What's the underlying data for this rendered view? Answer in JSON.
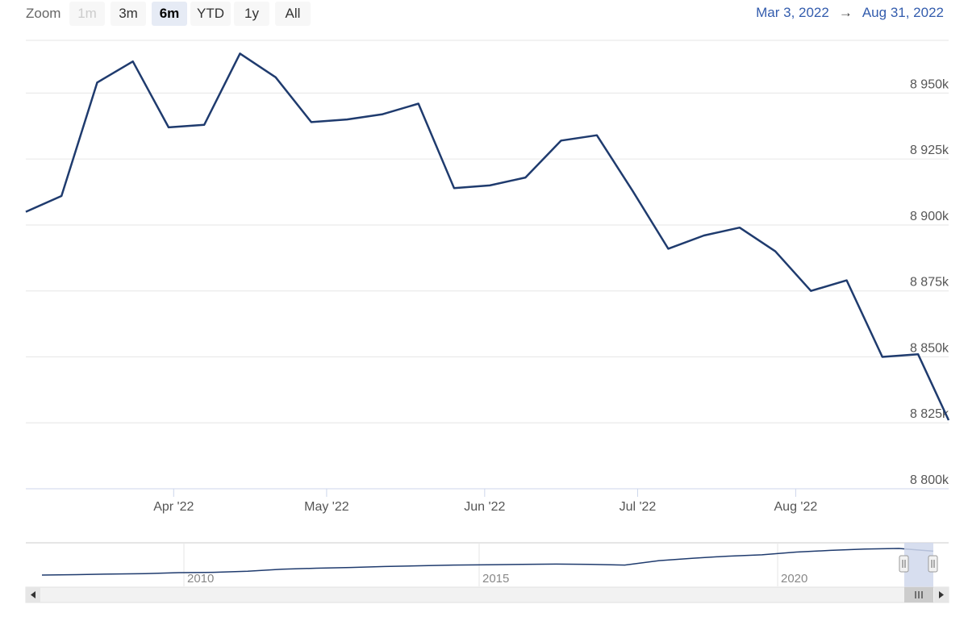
{
  "toolbar": {
    "zoom_label": "Zoom",
    "buttons": [
      "1m",
      "3m",
      "6m",
      "YTD",
      "1y",
      "All"
    ],
    "active": "6m",
    "disabled": [
      "1m"
    ],
    "range_from": "Mar 3, 2022",
    "range_arrow": "→",
    "range_to": "Aug 31, 2022"
  },
  "colors": {
    "line": "#1f3b6e",
    "grid": "#e6e6e6",
    "accent": "#335cad",
    "navigator_mask": "#d0d8ec"
  },
  "chart_data": {
    "type": "line",
    "title": "",
    "ylim": [
      8800,
      8970
    ],
    "x_range": [
      "2022-03-03",
      "2022-08-31"
    ],
    "yticks": [
      {
        "value": 8800,
        "label": "8 800k"
      },
      {
        "value": 8825,
        "label": "8 825k"
      },
      {
        "value": 8850,
        "label": "8 850k"
      },
      {
        "value": 8875,
        "label": "8 875k"
      },
      {
        "value": 8900,
        "label": "8 900k"
      },
      {
        "value": 8925,
        "label": "8 925k"
      },
      {
        "value": 8950,
        "label": "8 950k"
      }
    ],
    "xticks": [
      {
        "date": "2022-04-01",
        "label": "Apr '22"
      },
      {
        "date": "2022-05-01",
        "label": "May '22"
      },
      {
        "date": "2022-06-01",
        "label": "Jun '22"
      },
      {
        "date": "2022-07-01",
        "label": "Jul '22"
      },
      {
        "date": "2022-08-01",
        "label": "Aug '22"
      }
    ],
    "x": [
      "2022-03-03",
      "2022-03-10",
      "2022-03-17",
      "2022-03-24",
      "2022-03-31",
      "2022-04-07",
      "2022-04-14",
      "2022-04-21",
      "2022-04-28",
      "2022-05-05",
      "2022-05-12",
      "2022-05-19",
      "2022-05-26",
      "2022-06-02",
      "2022-06-09",
      "2022-06-16",
      "2022-06-23",
      "2022-06-30",
      "2022-07-07",
      "2022-07-14",
      "2022-07-21",
      "2022-07-28",
      "2022-08-04",
      "2022-08-11",
      "2022-08-18",
      "2022-08-25",
      "2022-08-31"
    ],
    "values": [
      8905,
      8911,
      8954,
      8962,
      8937,
      8938,
      8965,
      8956,
      8939,
      8940,
      8942,
      8946,
      8914,
      8915,
      8918,
      8932,
      8934,
      8913,
      8891,
      8896,
      8899,
      8890,
      8875,
      8879,
      8850,
      8851,
      8826
    ],
    "navigator": {
      "xticks": [
        {
          "label": "2010"
        },
        {
          "label": "2015"
        },
        {
          "label": "2020"
        }
      ],
      "series": [
        8130,
        8140,
        8160,
        8170,
        8200,
        8210,
        8240,
        8300,
        8330,
        8350,
        8380,
        8400,
        8420,
        8430,
        8440,
        8450,
        8440,
        8420,
        8550,
        8620,
        8680,
        8720,
        8800,
        8850,
        8890,
        8905,
        8826
      ]
    }
  }
}
